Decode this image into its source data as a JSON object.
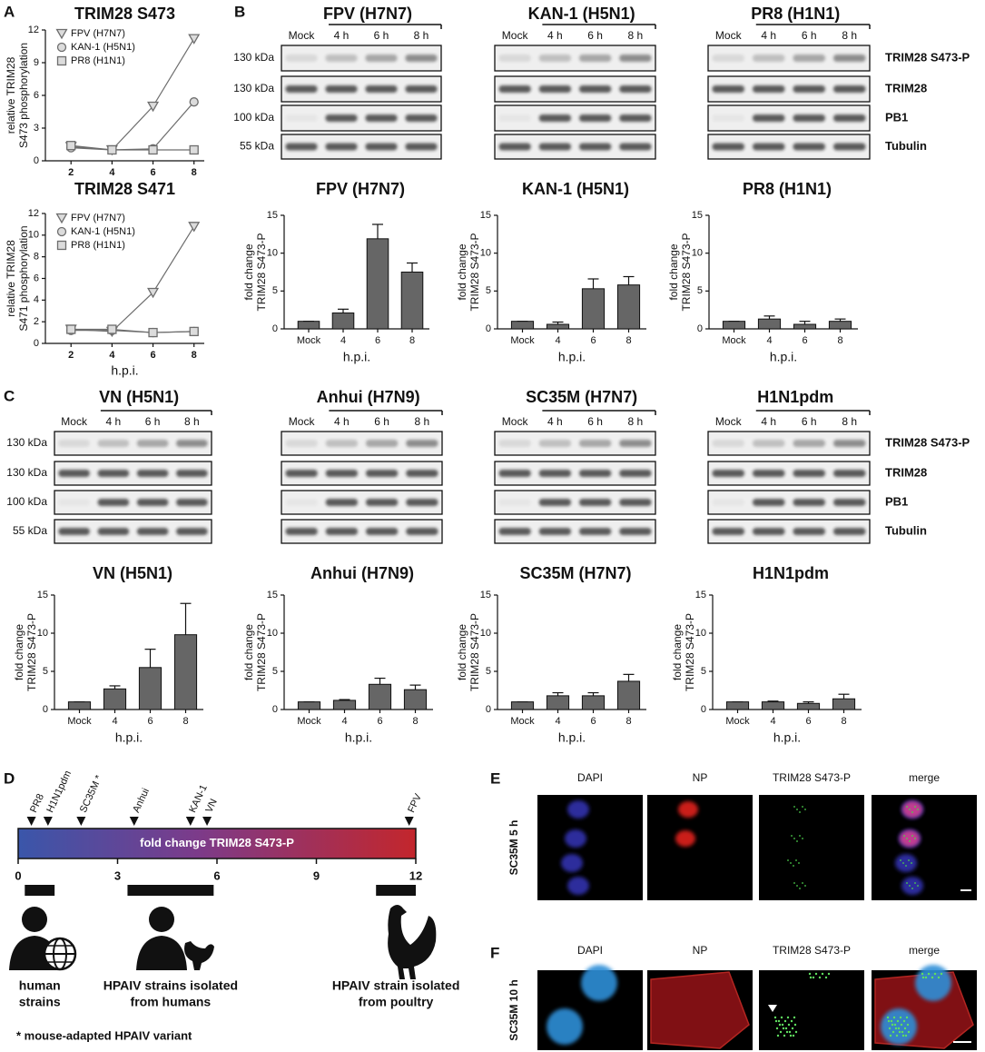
{
  "panel_labels": [
    "A",
    "B",
    "C",
    "D",
    "E",
    "F"
  ],
  "chart_data": [
    {
      "type": "line",
      "title": "TRIM28 S473",
      "y_label": [
        "relative TRIM28",
        "S473 phosphorylation"
      ],
      "x": [
        2,
        4,
        6,
        8
      ],
      "xlim": [
        0.75,
        8.5
      ],
      "xticks": [
        2,
        4,
        6,
        8
      ],
      "ylim": [
        0,
        12
      ],
      "yticks": [
        0,
        3,
        6,
        9,
        12
      ],
      "legend": "top-left",
      "series": [
        {
          "name": "FPV (H7N7)",
          "marker": "triangle",
          "color": "#6d6d6d",
          "values": [
            1.3,
            1.0,
            5.0,
            11.2
          ]
        },
        {
          "name": "KAN-1 (H5N1)",
          "marker": "circle",
          "color": "#6d6d6d",
          "values": [
            1.2,
            1.0,
            1.1,
            5.4
          ]
        },
        {
          "name": "PR8 (H1N1)",
          "marker": "square",
          "color": "#6d6d6d",
          "values": [
            1.4,
            1.0,
            1.0,
            1.0
          ]
        }
      ]
    },
    {
      "type": "line",
      "title": "TRIM28 S471",
      "y_label": [
        "relative TRIM28",
        "S471 phosphorylation"
      ],
      "x_label": "h.p.i.",
      "x": [
        2,
        4,
        6,
        8
      ],
      "xlim": [
        0.75,
        8.5
      ],
      "xticks": [
        2,
        4,
        6,
        8
      ],
      "ylim": [
        0,
        12
      ],
      "yticks": [
        0,
        2,
        4,
        6,
        8,
        10,
        12
      ],
      "legend": "top-left",
      "series": [
        {
          "name": "FPV (H7N7)",
          "marker": "triangle",
          "color": "#6d6d6d",
          "values": [
            1.3,
            1.1,
            4.7,
            10.8
          ]
        },
        {
          "name": "KAN-1 (H5N1)",
          "marker": "circle",
          "color": "#6d6d6d",
          "values": [
            1.2,
            1.2,
            1.0,
            1.1
          ]
        },
        {
          "name": "PR8 (H1N1)",
          "marker": "square",
          "color": "#6d6d6d",
          "values": [
            1.3,
            1.3,
            1.0,
            1.1
          ]
        }
      ]
    },
    {
      "type": "bar",
      "title": "FPV (H7N7)",
      "y_label": [
        "fold change",
        "TRIM28 S473-P"
      ],
      "x_label": "h.p.i.",
      "categories": [
        "Mock",
        "4",
        "6",
        "8"
      ],
      "values": [
        1,
        2.1,
        11.9,
        7.5
      ],
      "errors": [
        0,
        0.5,
        1.9,
        1.2
      ],
      "color": "#666666",
      "ylim": [
        0,
        15
      ],
      "yticks": [
        0,
        5,
        10,
        15
      ]
    },
    {
      "type": "bar",
      "title": "KAN-1 (H5N1)",
      "y_label": [
        "fold change",
        "TRIM28 S473-P"
      ],
      "x_label": "h.p.i.",
      "categories": [
        "Mock",
        "4",
        "6",
        "8"
      ],
      "values": [
        1,
        0.6,
        5.3,
        5.8
      ],
      "errors": [
        0,
        0.3,
        1.3,
        1.1
      ],
      "color": "#666666",
      "ylim": [
        0,
        15
      ],
      "yticks": [
        0,
        5,
        10,
        15
      ]
    },
    {
      "type": "bar",
      "title": "PR8 (H1N1)",
      "y_label": [
        "fold change",
        "TRIM28 S473-P"
      ],
      "x_label": "h.p.i.",
      "categories": [
        "Mock",
        "4",
        "6",
        "8"
      ],
      "values": [
        1,
        1.3,
        0.6,
        1.0
      ],
      "errors": [
        0,
        0.4,
        0.4,
        0.3
      ],
      "color": "#666666",
      "ylim": [
        0,
        15
      ],
      "yticks": [
        0,
        5,
        10,
        15
      ]
    },
    {
      "type": "bar",
      "title": "VN (H5N1)",
      "y_label": [
        "fold change",
        "TRIM28 S473-P"
      ],
      "x_label": "h.p.i.",
      "categories": [
        "Mock",
        "4",
        "6",
        "8"
      ],
      "values": [
        1,
        2.7,
        5.5,
        9.8
      ],
      "errors": [
        0,
        0.4,
        2.4,
        4.1
      ],
      "color": "#666666",
      "ylim": [
        0,
        15
      ],
      "yticks": [
        0,
        5,
        10,
        15
      ]
    },
    {
      "type": "bar",
      "title": "Anhui (H7N9)",
      "y_label": [
        "fold change",
        "TRIM28 S473-P"
      ],
      "x_label": "h.p.i.",
      "categories": [
        "Mock",
        "4",
        "6",
        "8"
      ],
      "values": [
        1,
        1.2,
        3.3,
        2.6
      ],
      "errors": [
        0,
        0.1,
        0.8,
        0.6
      ],
      "color": "#666666",
      "ylim": [
        0,
        15
      ],
      "yticks": [
        0,
        5,
        10,
        15
      ]
    },
    {
      "type": "bar",
      "title": "SC35M (H7N7)",
      "y_label": [
        "fold change",
        "TRIM28 S473-P"
      ],
      "x_label": "h.p.i.",
      "categories": [
        "Mock",
        "4",
        "6",
        "8"
      ],
      "values": [
        1,
        1.8,
        1.8,
        3.7
      ],
      "errors": [
        0,
        0.4,
        0.4,
        0.9
      ],
      "color": "#666666",
      "ylim": [
        0,
        15
      ],
      "yticks": [
        0,
        5,
        10,
        15
      ]
    },
    {
      "type": "bar",
      "title": "H1N1pdm",
      "y_label": [
        "fold change",
        "TRIM28 S473-P"
      ],
      "x_label": "h.p.i.",
      "categories": [
        "Mock",
        "4",
        "6",
        "8"
      ],
      "values": [
        1,
        1.0,
        0.8,
        1.4
      ],
      "errors": [
        0,
        0.1,
        0.2,
        0.6
      ],
      "color": "#666666",
      "ylim": [
        0,
        15
      ],
      "yticks": [
        0,
        5,
        10,
        15
      ]
    },
    {
      "type": "scale",
      "title": "fold change TRIM28 S473-P",
      "xlim": [
        0,
        12
      ],
      "xticks": [
        0,
        3,
        6,
        9,
        12
      ],
      "strains": [
        {
          "name": "PR8",
          "value": 0.4
        },
        {
          "name": "H1N1pdm",
          "value": 0.9
        },
        {
          "name": "SC35M *",
          "value": 1.9
        },
        {
          "name": "Anhui",
          "value": 3.5
        },
        {
          "name": "KAN-1",
          "value": 5.2
        },
        {
          "name": "VN",
          "value": 5.7
        },
        {
          "name": "FPV",
          "value": 11.8
        }
      ],
      "groups": [
        {
          "label": [
            "human",
            "strains"
          ],
          "range": [
            0.2,
            1.1
          ]
        },
        {
          "label": [
            "HPAIV strains isolated",
            "from humans"
          ],
          "range": [
            3.3,
            5.9
          ]
        },
        {
          "label": [
            "HPAIV strain isolated",
            "from poultry"
          ],
          "range": [
            10.8,
            12
          ]
        }
      ],
      "footnote": "* mouse-adapted HPAIV variant"
    }
  ],
  "blots": {
    "lanes": [
      "Mock",
      "4 h",
      "6 h",
      "8 h"
    ],
    "markers": [
      "130 kDa",
      "130 kDa",
      "100 kDa",
      "55 kDa"
    ],
    "proteins": [
      "TRIM28 S473-P",
      "TRIM28",
      "PB1",
      "Tubulin"
    ],
    "B": [
      "FPV (H7N7)",
      "KAN-1 (H5N1)",
      "PR8 (H1N1)"
    ],
    "C": [
      "VN (H5N1)",
      "Anhui (H7N9)",
      "SC35M (H7N7)",
      "H1N1pdm"
    ]
  },
  "microscopy": {
    "channels": [
      "DAPI",
      "NP",
      "TRIM28 S473-P",
      "merge"
    ],
    "rows": [
      "SC35M 5 h",
      "SC35M 10 h"
    ]
  }
}
